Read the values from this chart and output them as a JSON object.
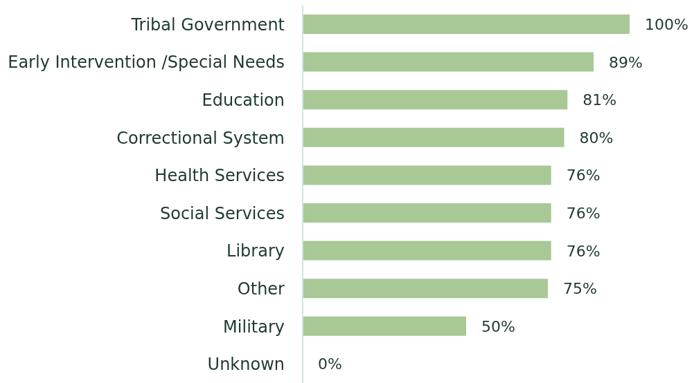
{
  "chart_data": {
    "type": "bar",
    "orientation": "horizontal",
    "categories": [
      "Tribal Government",
      "Early Intervention /Special Needs",
      "Education",
      "Correctional System",
      "Health Services",
      "Social Services",
      "Library",
      "Other",
      "Military",
      "Unknown"
    ],
    "values": [
      100,
      89,
      81,
      80,
      76,
      76,
      76,
      75,
      50,
      0
    ],
    "value_labels": [
      "100%",
      "89%",
      "81%",
      "80%",
      "76%",
      "76%",
      "76%",
      "75%",
      "50%",
      "0%"
    ],
    "color": "#a8c896"
  }
}
